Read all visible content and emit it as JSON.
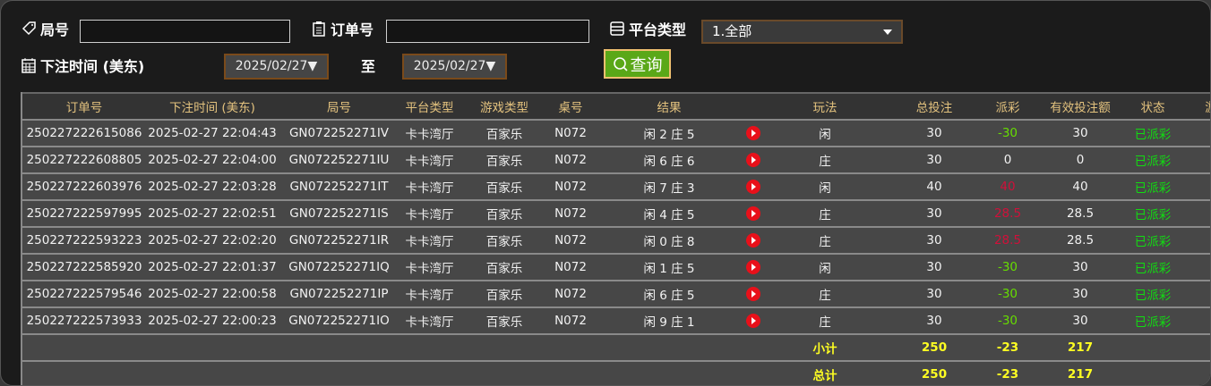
{
  "filters": {
    "round_label": "局号",
    "round_value": "",
    "order_label": "订单号",
    "order_value": "",
    "platform_label": "平台类型",
    "platform_value": "1.全部",
    "time_label": "下注时间 (美东)",
    "date_from": "2025/02/27▼",
    "to_label": "至",
    "date_to": "2025/02/27▼",
    "query_button": "查询"
  },
  "colors": {
    "accent_green": "#5aa818",
    "header_text": "#e3c27e",
    "win": "#66dd00",
    "loss": "#d0103a",
    "total": "#ffff22"
  },
  "table": {
    "headers": [
      "订单号",
      "下注时间 (美东)",
      "局号",
      "平台类型",
      "游戏类型",
      "桌号",
      "结果",
      "",
      "玩法",
      "总投注",
      "派彩",
      "有效投注额",
      "状态",
      "游"
    ],
    "rows": [
      {
        "order": "250227222615086",
        "time": "2025-02-27 22:04:43",
        "round": "GN072252271IV",
        "platform": "卡卡湾厅",
        "game": "百家乐",
        "table": "N072",
        "result": "闲 2 庄 5",
        "play": "闲",
        "bet": "30",
        "payout": "-30",
        "payout_type": "pos",
        "valid": "30",
        "status": "已派彩"
      },
      {
        "order": "250227222608805",
        "time": "2025-02-27 22:04:00",
        "round": "GN072252271IU",
        "platform": "卡卡湾厅",
        "game": "百家乐",
        "table": "N072",
        "result": "闲 6 庄 6",
        "play": "庄",
        "bet": "30",
        "payout": "0",
        "payout_type": "zero",
        "valid": "0",
        "status": "已派彩"
      },
      {
        "order": "250227222603976",
        "time": "2025-02-27 22:03:28",
        "round": "GN072252271IT",
        "platform": "卡卡湾厅",
        "game": "百家乐",
        "table": "N072",
        "result": "闲 7 庄 3",
        "play": "闲",
        "bet": "40",
        "payout": "40",
        "payout_type": "neg",
        "valid": "40",
        "status": "已派彩"
      },
      {
        "order": "250227222597995",
        "time": "2025-02-27 22:02:51",
        "round": "GN072252271IS",
        "platform": "卡卡湾厅",
        "game": "百家乐",
        "table": "N072",
        "result": "闲 4 庄 5",
        "play": "庄",
        "bet": "30",
        "payout": "28.5",
        "payout_type": "neg",
        "valid": "28.5",
        "status": "已派彩"
      },
      {
        "order": "250227222593223",
        "time": "2025-02-27 22:02:20",
        "round": "GN072252271IR",
        "platform": "卡卡湾厅",
        "game": "百家乐",
        "table": "N072",
        "result": "闲 0 庄 8",
        "play": "庄",
        "bet": "30",
        "payout": "28.5",
        "payout_type": "neg",
        "valid": "28.5",
        "status": "已派彩"
      },
      {
        "order": "250227222585920",
        "time": "2025-02-27 22:01:37",
        "round": "GN072252271IQ",
        "platform": "卡卡湾厅",
        "game": "百家乐",
        "table": "N072",
        "result": "闲 1 庄 5",
        "play": "闲",
        "bet": "30",
        "payout": "-30",
        "payout_type": "pos",
        "valid": "30",
        "status": "已派彩"
      },
      {
        "order": "250227222579546",
        "time": "2025-02-27 22:00:58",
        "round": "GN072252271IP",
        "platform": "卡卡湾厅",
        "game": "百家乐",
        "table": "N072",
        "result": "闲 6 庄 5",
        "play": "庄",
        "bet": "30",
        "payout": "-30",
        "payout_type": "pos",
        "valid": "30",
        "status": "已派彩"
      },
      {
        "order": "250227222573933",
        "time": "2025-02-27 22:00:23",
        "round": "GN072252271IO",
        "platform": "卡卡湾厅",
        "game": "百家乐",
        "table": "N072",
        "result": "闲 9 庄 1",
        "play": "庄",
        "bet": "30",
        "payout": "-30",
        "payout_type": "pos",
        "valid": "30",
        "status": "已派彩"
      }
    ],
    "subtotal": {
      "label": "小计",
      "bet": "250",
      "payout": "-23",
      "valid": "217"
    },
    "total": {
      "label": "总计",
      "bet": "250",
      "payout": "-23",
      "valid": "217"
    }
  }
}
